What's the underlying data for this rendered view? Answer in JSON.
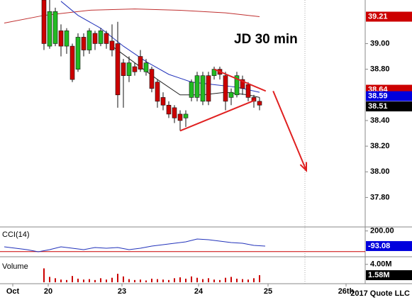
{
  "chart_data": [
    {
      "type": "candlestick",
      "title": "JD 30 min",
      "x": [
        0,
        1,
        2,
        3,
        4,
        5,
        6,
        7,
        8,
        9,
        10,
        11,
        12,
        13,
        14,
        15,
        16,
        17,
        18,
        19,
        20,
        21,
        22,
        23,
        24,
        25,
        26,
        27,
        28,
        29,
        30,
        31,
        32,
        33,
        34,
        35,
        36,
        37,
        38
      ],
      "open": [
        39.34,
        38.98,
        39.0,
        39.1,
        38.98,
        38.98,
        38.8,
        39.05,
        38.95,
        39.08,
        39.0,
        39.08,
        39.02,
        39.0,
        38.85,
        38.75,
        38.82,
        38.9,
        38.78,
        38.8,
        38.7,
        38.58,
        38.52,
        38.5,
        38.45,
        38.42,
        38.58,
        38.58,
        38.55,
        38.75,
        38.75,
        38.8,
        38.75,
        38.58,
        38.6,
        38.72,
        38.68,
        38.58,
        38.55
      ],
      "high": [
        39.34,
        39.34,
        39.28,
        39.15,
        39.12,
        39.0,
        39.08,
        39.08,
        39.12,
        39.1,
        39.12,
        39.1,
        39.15,
        39.17,
        38.88,
        38.9,
        38.85,
        38.95,
        38.88,
        38.82,
        38.72,
        38.62,
        38.55,
        38.52,
        38.48,
        38.48,
        38.72,
        38.78,
        38.78,
        38.78,
        38.82,
        38.82,
        38.78,
        38.65,
        38.78,
        38.75,
        38.7,
        38.6,
        38.58
      ],
      "low": [
        38.95,
        38.96,
        38.98,
        38.9,
        38.92,
        38.7,
        38.78,
        38.9,
        38.92,
        38.95,
        38.98,
        38.96,
        38.9,
        38.5,
        38.5,
        38.7,
        38.75,
        38.78,
        38.75,
        38.62,
        38.5,
        38.48,
        38.42,
        38.38,
        38.32,
        38.35,
        38.55,
        38.55,
        38.52,
        38.52,
        38.72,
        38.72,
        38.48,
        38.52,
        38.58,
        38.6,
        38.55,
        38.5,
        38.48
      ],
      "close": [
        39.0,
        39.25,
        39.25,
        38.98,
        39.1,
        38.72,
        39.05,
        38.95,
        39.1,
        39.0,
        39.1,
        39.0,
        38.95,
        38.6,
        38.75,
        38.85,
        38.78,
        38.8,
        38.85,
        38.65,
        38.55,
        38.52,
        38.45,
        38.42,
        38.4,
        38.45,
        38.7,
        38.75,
        38.75,
        38.55,
        38.8,
        38.76,
        38.55,
        38.62,
        38.75,
        38.65,
        38.58,
        38.55,
        38.52
      ],
      "up_color": "#22bb22",
      "down_color": "#cc0000",
      "xlim": [
        -7.75,
        56.625
      ],
      "xticks": [
        {
          "value": -5.5,
          "label": "Oct"
        },
        {
          "value": 0.75,
          "label": "20"
        },
        {
          "value": 13.75,
          "label": "23"
        },
        {
          "value": 27.25,
          "label": "24"
        },
        {
          "value": 39.5,
          "label": "25"
        },
        {
          "value": 53.25,
          "label": "26th"
        }
      ],
      "ylim": [
        37.57,
        39.34
      ],
      "yticks": [
        {
          "value": 39.0,
          "label": "39.00"
        },
        {
          "value": 38.8,
          "label": "38.80"
        },
        {
          "value": 38.4,
          "label": "38.40"
        },
        {
          "value": 38.2,
          "label": "38.20"
        },
        {
          "value": 38.0,
          "label": "38.00"
        },
        {
          "value": 37.8,
          "label": "37.80"
        }
      ],
      "vline": 46,
      "overlays": [
        {
          "color": "#c03030",
          "x": [
            -7,
            0,
            8,
            16,
            24,
            32,
            38
          ],
          "values": [
            39.16,
            39.22,
            39.26,
            39.27,
            39.26,
            39.24,
            39.21
          ]
        },
        {
          "color": "#2233bb",
          "x": [
            3,
            6,
            10,
            14,
            18,
            22,
            26,
            30,
            34,
            38
          ],
          "values": [
            39.33,
            39.22,
            39.12,
            38.98,
            38.86,
            38.76,
            38.7,
            38.68,
            38.66,
            38.62
          ]
        },
        {
          "color": "#222222",
          "x": [
            12,
            16,
            20,
            24,
            28,
            32,
            36,
            38
          ],
          "values": [
            38.98,
            38.85,
            38.72,
            38.6,
            38.6,
            38.62,
            38.6,
            38.58
          ]
        }
      ],
      "trendlines": [
        {
          "color": "#e02020",
          "x": [
            24,
            37.25
          ],
          "values": [
            38.32,
            38.56
          ]
        },
        {
          "color": "#e02020",
          "x": [
            30,
            39.1
          ],
          "values": [
            38.8,
            38.63
          ]
        },
        {
          "color": "#e02020",
          "arrow": true,
          "x": [
            40.4,
            46.25
          ],
          "values": [
            38.63,
            38.01
          ]
        }
      ],
      "price_labels": [
        {
          "value": 39.21,
          "color": "#cc0000"
        },
        {
          "value": 38.64,
          "color": "#cc0000"
        },
        {
          "value": 38.59,
          "color": "#0000dd"
        },
        {
          "value": 38.51,
          "color": "#000000"
        }
      ]
    },
    {
      "type": "line",
      "title": "CCI(14)",
      "color": "#2233bb",
      "x": [
        -7,
        -5,
        -3,
        -1,
        1,
        3,
        5,
        7,
        9,
        11,
        13,
        15,
        17,
        19,
        21,
        23,
        25,
        27,
        29,
        31,
        33,
        35,
        37,
        39
      ],
      "values": [
        -107,
        -135,
        -162,
        -204,
        -162,
        -107,
        -135,
        -162,
        -121,
        -135,
        -121,
        -162,
        -135,
        -94,
        -66,
        -39,
        -11,
        44,
        30,
        3,
        -25,
        -39,
        -80,
        -93.08
      ],
      "ylim": [
        -300,
        250
      ],
      "yticks": [
        {
          "value": 200,
          "label": "200.00"
        }
      ],
      "ref_lines": [
        -200
      ],
      "ref_color": "#cc0000"
    },
    {
      "type": "bar",
      "title": "Volume",
      "color": "#cc0000",
      "x": [
        0,
        1,
        2,
        3,
        4,
        5,
        6,
        7,
        8,
        9,
        10,
        11,
        12,
        13,
        14,
        15,
        16,
        17,
        18,
        19,
        20,
        21,
        22,
        23,
        24,
        25,
        26,
        27,
        28,
        29,
        30,
        31,
        32,
        33,
        34,
        35,
        36,
        37,
        38
      ],
      "values": [
        3100000,
        1200000,
        900000,
        600000,
        500000,
        1400000,
        800000,
        600000,
        700000,
        500000,
        900000,
        600000,
        1000000,
        1900000,
        1300000,
        700000,
        500000,
        600000,
        400000,
        800000,
        700000,
        600000,
        500000,
        900000,
        1100000,
        800000,
        1300000,
        1000000,
        700000,
        900000,
        600000,
        500000,
        1000000,
        1200000,
        800000,
        700000,
        600000,
        900000,
        1580000
      ],
      "ylim": [
        0,
        5380000
      ],
      "yticks": [
        {
          "value": 4000000,
          "label": "4.00M"
        }
      ],
      "last_label": {
        "value": 1580000,
        "label": "1.58M"
      }
    }
  ],
  "footer": "2017 Quote LLC"
}
